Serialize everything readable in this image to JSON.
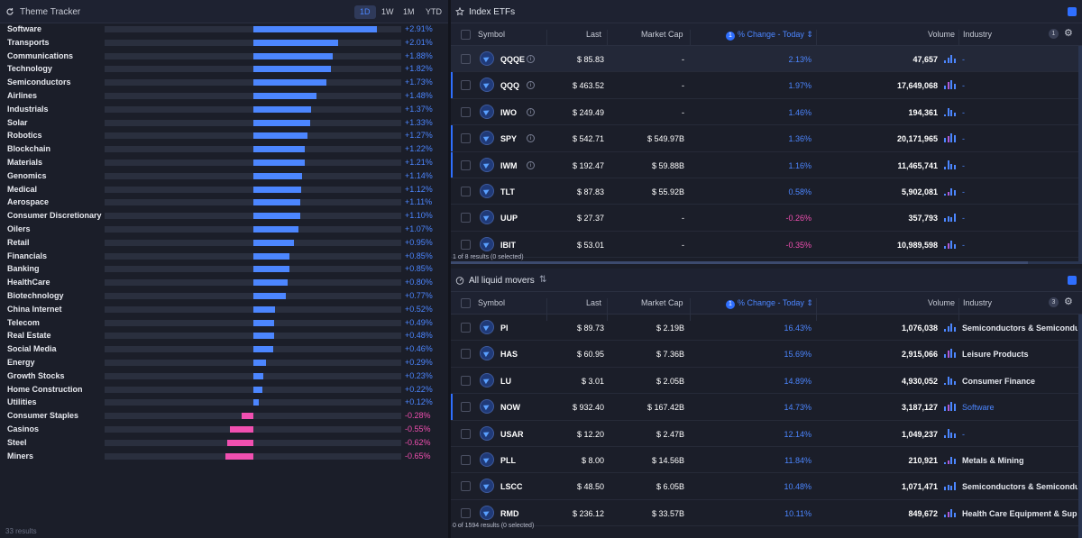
{
  "theme_tracker": {
    "title": "Theme Tracker",
    "timeframes": [
      "1D",
      "1W",
      "1M",
      "YTD"
    ],
    "active_timeframe": "1D",
    "results": "33 results",
    "rows": [
      {
        "label": "Software",
        "change": 2.91,
        "text": "+2.91%"
      },
      {
        "label": "Transports",
        "change": 2.01,
        "text": "+2.01%"
      },
      {
        "label": "Communications",
        "change": 1.88,
        "text": "+1.88%"
      },
      {
        "label": "Technology",
        "change": 1.82,
        "text": "+1.82%"
      },
      {
        "label": "Semiconductors",
        "change": 1.73,
        "text": "+1.73%"
      },
      {
        "label": "Airlines",
        "change": 1.48,
        "text": "+1.48%"
      },
      {
        "label": "Industrials",
        "change": 1.37,
        "text": "+1.37%"
      },
      {
        "label": "Solar",
        "change": 1.33,
        "text": "+1.33%"
      },
      {
        "label": "Robotics",
        "change": 1.27,
        "text": "+1.27%"
      },
      {
        "label": "Blockchain",
        "change": 1.22,
        "text": "+1.22%"
      },
      {
        "label": "Materials",
        "change": 1.21,
        "text": "+1.21%"
      },
      {
        "label": "Genomics",
        "change": 1.14,
        "text": "+1.14%"
      },
      {
        "label": "Medical",
        "change": 1.12,
        "text": "+1.12%"
      },
      {
        "label": "Aerospace",
        "change": 1.11,
        "text": "+1.11%"
      },
      {
        "label": "Consumer Discretionary",
        "change": 1.1,
        "text": "+1.10%"
      },
      {
        "label": "Oilers",
        "change": 1.07,
        "text": "+1.07%"
      },
      {
        "label": "Retail",
        "change": 0.95,
        "text": "+0.95%"
      },
      {
        "label": "Financials",
        "change": 0.85,
        "text": "+0.85%"
      },
      {
        "label": "Banking",
        "change": 0.85,
        "text": "+0.85%"
      },
      {
        "label": "HealthCare",
        "change": 0.8,
        "text": "+0.80%"
      },
      {
        "label": "Biotechnology",
        "change": 0.77,
        "text": "+0.77%"
      },
      {
        "label": "China Internet",
        "change": 0.52,
        "text": "+0.52%"
      },
      {
        "label": "Telecom",
        "change": 0.49,
        "text": "+0.49%"
      },
      {
        "label": "Real Estate",
        "change": 0.48,
        "text": "+0.48%"
      },
      {
        "label": "Social Media",
        "change": 0.46,
        "text": "+0.46%"
      },
      {
        "label": "Energy",
        "change": 0.29,
        "text": "+0.29%"
      },
      {
        "label": "Growth Stocks",
        "change": 0.23,
        "text": "+0.23%"
      },
      {
        "label": "Home Construction",
        "change": 0.22,
        "text": "+0.22%"
      },
      {
        "label": "Utilities",
        "change": 0.12,
        "text": "+0.12%"
      },
      {
        "label": "Consumer Staples",
        "change": -0.28,
        "text": "-0.28%"
      },
      {
        "label": "Casinos",
        "change": -0.55,
        "text": "-0.55%"
      },
      {
        "label": "Steel",
        "change": -0.62,
        "text": "-0.62%"
      },
      {
        "label": "Miners",
        "change": -0.65,
        "text": "-0.65%"
      }
    ]
  },
  "index_etfs": {
    "title": "Index ETFs",
    "columns": {
      "symbol": "Symbol",
      "last": "Last",
      "market_cap": "Market Cap",
      "change": "% Change - Today",
      "volume": "Volume",
      "industry": "Industry"
    },
    "sort_badge": "1",
    "industry_badge": "1",
    "results": "1 of 8 results (0 selected)",
    "rows": [
      {
        "symbol": "QQQE",
        "last": "$ 85.83",
        "market_cap": "-",
        "change": "2.13%",
        "dir": "pos",
        "volume": "47,657",
        "industry": "-",
        "highlight": true,
        "mark": false,
        "info": true
      },
      {
        "symbol": "QQQ",
        "last": "$ 463.52",
        "market_cap": "-",
        "change": "1.97%",
        "dir": "pos",
        "volume": "17,649,068",
        "industry": "-",
        "highlight": false,
        "mark": true,
        "info": true
      },
      {
        "symbol": "IWO",
        "last": "$ 249.49",
        "market_cap": "-",
        "change": "1.46%",
        "dir": "pos",
        "volume": "194,361",
        "industry": "-",
        "highlight": false,
        "mark": false,
        "info": true
      },
      {
        "symbol": "SPY",
        "last": "$ 542.71",
        "market_cap": "$ 549.97B",
        "change": "1.36%",
        "dir": "pos",
        "volume": "20,171,965",
        "industry": "-",
        "highlight": false,
        "mark": true,
        "info": true
      },
      {
        "symbol": "IWM",
        "last": "$ 192.47",
        "market_cap": "$ 59.88B",
        "change": "1.16%",
        "dir": "pos",
        "volume": "11,465,741",
        "industry": "-",
        "highlight": false,
        "mark": true,
        "info": true
      },
      {
        "symbol": "TLT",
        "last": "$ 87.83",
        "market_cap": "$ 55.92B",
        "change": "0.58%",
        "dir": "pos",
        "volume": "5,902,081",
        "industry": "-",
        "highlight": false,
        "mark": false,
        "info": false
      },
      {
        "symbol": "UUP",
        "last": "$ 27.37",
        "market_cap": "-",
        "change": "-0.26%",
        "dir": "neg",
        "volume": "357,793",
        "industry": "-",
        "highlight": false,
        "mark": false,
        "info": false
      },
      {
        "symbol": "IBIT",
        "last": "$ 53.01",
        "market_cap": "-",
        "change": "-0.35%",
        "dir": "neg",
        "volume": "10,989,598",
        "industry": "-",
        "highlight": false,
        "mark": false,
        "info": false
      }
    ]
  },
  "liquid_movers": {
    "title": "All liquid movers",
    "columns": {
      "symbol": "Symbol",
      "last": "Last",
      "market_cap": "Market Cap",
      "change": "% Change - Today",
      "volume": "Volume",
      "industry": "Industry"
    },
    "sort_badge": "1",
    "industry_badge": "3",
    "results": "0 of 1594 results (0 selected)",
    "rows": [
      {
        "symbol": "PI",
        "last": "$ 89.73",
        "market_cap": "$ 2.19B",
        "change": "16.43%",
        "dir": "pos",
        "volume": "1,076,038",
        "industry": "Semiconductors & Semiconductor",
        "link": false,
        "mark": false
      },
      {
        "symbol": "HAS",
        "last": "$ 60.95",
        "market_cap": "$ 7.36B",
        "change": "15.69%",
        "dir": "pos",
        "volume": "2,915,066",
        "industry": "Leisure Products",
        "link": false,
        "mark": false
      },
      {
        "symbol": "LU",
        "last": "$ 3.01",
        "market_cap": "$ 2.05B",
        "change": "14.89%",
        "dir": "pos",
        "volume": "4,930,052",
        "industry": "Consumer Finance",
        "link": false,
        "mark": false
      },
      {
        "symbol": "NOW",
        "last": "$ 932.40",
        "market_cap": "$ 167.42B",
        "change": "14.73%",
        "dir": "pos",
        "volume": "3,187,127",
        "industry": "Software",
        "link": true,
        "mark": true
      },
      {
        "symbol": "USAR",
        "last": "$ 12.20",
        "market_cap": "$ 2.47B",
        "change": "12.14%",
        "dir": "pos",
        "volume": "1,049,237",
        "industry": "-",
        "link": false,
        "mark": false
      },
      {
        "symbol": "PLL",
        "last": "$ 8.00",
        "market_cap": "$ 14.56B",
        "change": "11.84%",
        "dir": "pos",
        "volume": "210,921",
        "industry": "Metals & Mining",
        "link": false,
        "mark": false
      },
      {
        "symbol": "LSCC",
        "last": "$ 48.50",
        "market_cap": "$ 6.05B",
        "change": "10.48%",
        "dir": "pos",
        "volume": "1,071,471",
        "industry": "Semiconductors & Semiconductor",
        "link": false,
        "mark": false
      },
      {
        "symbol": "RMD",
        "last": "$ 236.12",
        "market_cap": "$ 33.57B",
        "change": "10.11%",
        "dir": "pos",
        "volume": "849,672",
        "industry": "Health Care Equipment & Supp",
        "link": false,
        "mark": false
      }
    ]
  },
  "colors": {
    "positive": "#4c86ff",
    "negative": "#f04fb0",
    "accent": "#2f6fff"
  }
}
